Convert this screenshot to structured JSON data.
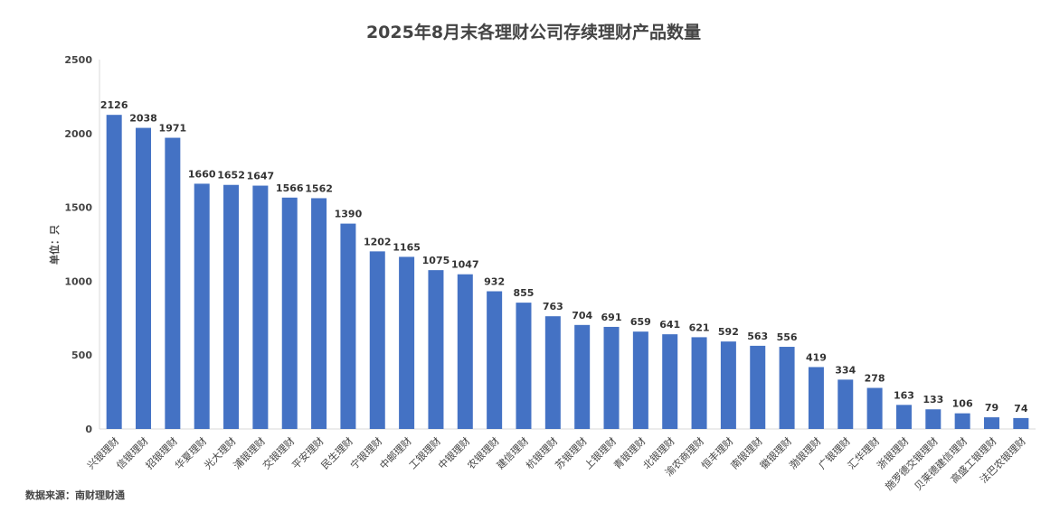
{
  "chart_data": {
    "type": "bar",
    "title": "2025年8月末各理财公司存续理财产品数量",
    "ylabel": "单位：只",
    "xlabel": "",
    "ylim": [
      0,
      2500
    ],
    "yticks": [
      0,
      500,
      1000,
      1500,
      2000,
      2500
    ],
    "grid": false,
    "legend": "none",
    "bar_color": "#4472C4",
    "categories": [
      "兴银理财",
      "信银理财",
      "招银理财",
      "华夏理财",
      "光大理财",
      "浦银理财",
      "交银理财",
      "平安理财",
      "民生理财",
      "宁银理财",
      "中邮理财",
      "工银理财",
      "中银理财",
      "农银理财",
      "建信理财",
      "杭银理财",
      "苏银理财",
      "上银理财",
      "青银理财",
      "北银理财",
      "渝农商理财",
      "恒丰理财",
      "南银理财",
      "徽银理财",
      "渤银理财",
      "广银理财",
      "汇华理财",
      "浙银理财",
      "施罗德交银理财",
      "贝莱德建信理财",
      "高盛工银理财",
      "法巴农银理财"
    ],
    "values": [
      2126,
      2038,
      1971,
      1660,
      1652,
      1647,
      1566,
      1562,
      1390,
      1202,
      1165,
      1075,
      1047,
      932,
      855,
      763,
      704,
      691,
      659,
      641,
      621,
      592,
      563,
      556,
      419,
      334,
      278,
      163,
      133,
      106,
      79,
      74
    ],
    "source": "数据来源：南财理财通"
  }
}
